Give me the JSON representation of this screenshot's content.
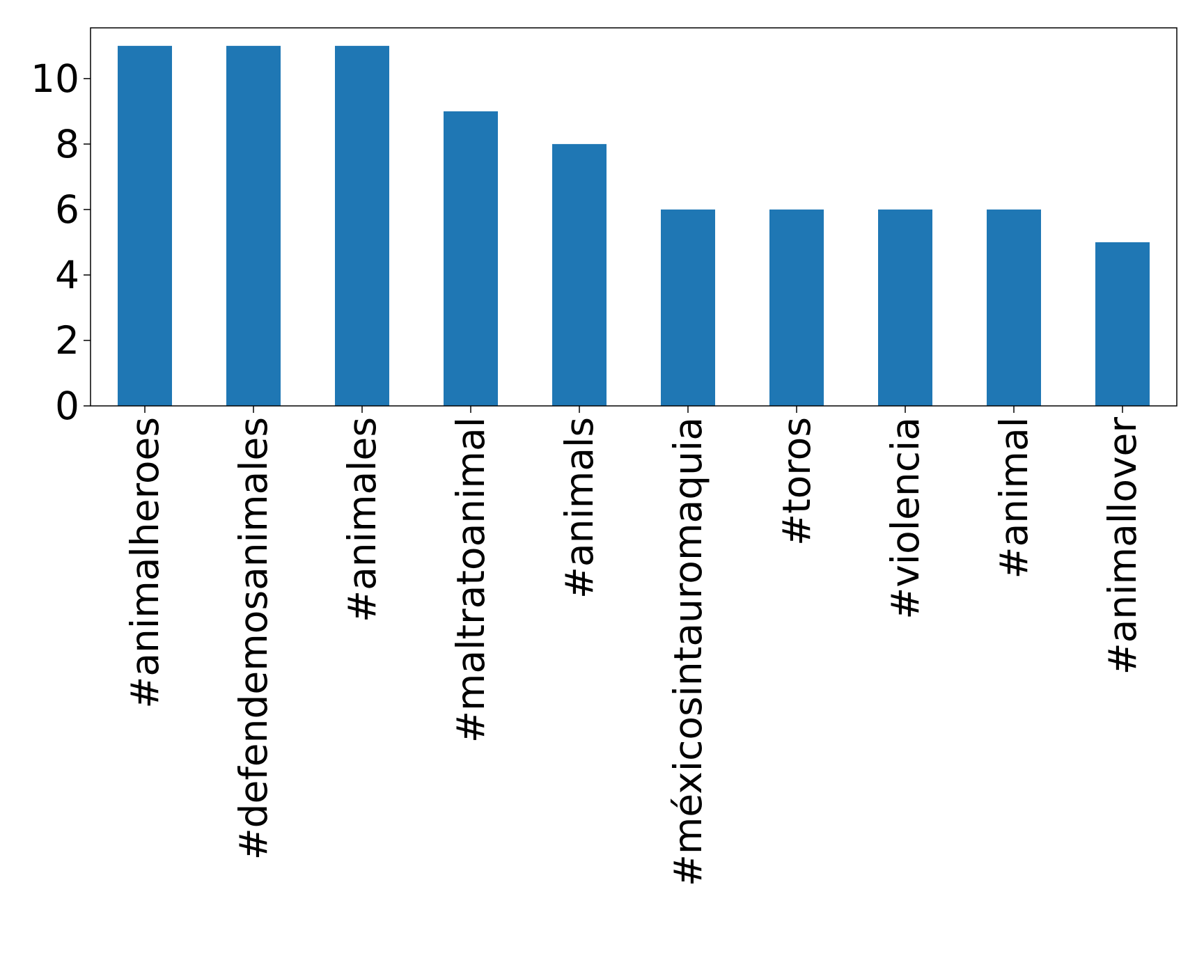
{
  "chart_data": {
    "type": "bar",
    "title": "",
    "xlabel": "",
    "ylabel": "",
    "categories": [
      "#animalheroes",
      "#defendemosanimales",
      "#animales",
      "#maltratoanimal",
      "#animals",
      "#méxicosintauromaquia",
      "#toros",
      "#violencia",
      "#animal",
      "#animallover"
    ],
    "values": [
      11,
      11,
      11,
      9,
      8,
      6,
      6,
      6,
      6,
      5
    ],
    "ylim": [
      0,
      11.55
    ],
    "yticks": [
      0,
      2,
      4,
      6,
      8,
      10
    ],
    "grid": false,
    "legend": "none",
    "bar_color": "#1f77b4"
  }
}
